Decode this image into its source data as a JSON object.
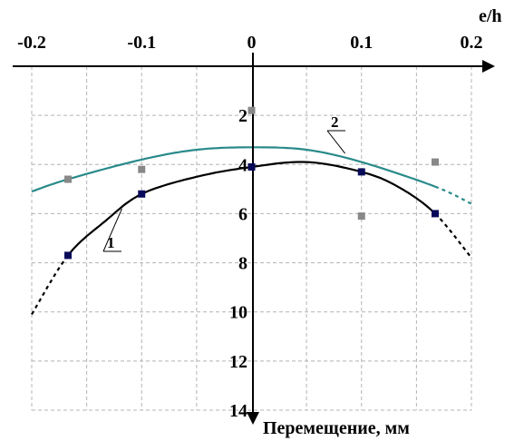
{
  "chart_data": {
    "type": "line",
    "title": "",
    "xlabel": "e/h",
    "ylabel": "Перемещение, мм",
    "x_axis_position": "top",
    "y_axis_direction": "down",
    "grid": true,
    "xlim": [
      -0.2,
      0.2
    ],
    "ylim": [
      0,
      14
    ],
    "x_ticks": [
      -0.2,
      -0.1,
      0,
      0.1,
      0.2
    ],
    "x_tick_labels": [
      "-0.2",
      "-0.1",
      "0",
      "0.1",
      "0.2"
    ],
    "y_ticks": [
      2,
      4,
      6,
      8,
      10,
      12,
      14
    ],
    "y_tick_labels": [
      "2",
      "4",
      "6",
      "8",
      "10",
      "12",
      "14"
    ],
    "series": [
      {
        "name": "1",
        "color": "#000000",
        "marker_color": "#0a0a5a",
        "points": [
          {
            "x": -0.167,
            "y": 7.7
          },
          {
            "x": -0.1,
            "y": 5.2
          },
          {
            "x": 0,
            "y": 4.1
          },
          {
            "x": 0.1,
            "y": 4.3
          },
          {
            "x": 0.167,
            "y": 6.0
          }
        ],
        "curve": [
          {
            "x": -0.2,
            "y": 10.1
          },
          {
            "x": -0.167,
            "y": 7.7
          },
          {
            "x": -0.133,
            "y": 6.3
          },
          {
            "x": -0.1,
            "y": 5.2
          },
          {
            "x": -0.05,
            "y": 4.5
          },
          {
            "x": 0,
            "y": 4.1
          },
          {
            "x": 0.05,
            "y": 3.9
          },
          {
            "x": 0.1,
            "y": 4.3
          },
          {
            "x": 0.133,
            "y": 4.9
          },
          {
            "x": 0.167,
            "y": 6.0
          },
          {
            "x": 0.2,
            "y": 7.8
          }
        ],
        "extrapolated_x_ranges": [
          [
            -0.2,
            -0.167
          ],
          [
            0.167,
            0.2
          ]
        ]
      },
      {
        "name": "2",
        "color": "#2a8a8a",
        "marker_color": "#888888",
        "points": [
          {
            "x": -0.167,
            "y": 4.6
          },
          {
            "x": -0.1,
            "y": 4.2
          },
          {
            "x": 0,
            "y": 1.8
          },
          {
            "x": 0.1,
            "y": 6.1
          },
          {
            "x": 0.167,
            "y": 3.9
          }
        ],
        "curve": [
          {
            "x": -0.2,
            "y": 5.1
          },
          {
            "x": -0.167,
            "y": 4.6
          },
          {
            "x": -0.1,
            "y": 3.8
          },
          {
            "x": -0.05,
            "y": 3.4
          },
          {
            "x": 0,
            "y": 3.3
          },
          {
            "x": 0.05,
            "y": 3.4
          },
          {
            "x": 0.1,
            "y": 3.9
          },
          {
            "x": 0.167,
            "y": 4.9
          },
          {
            "x": 0.2,
            "y": 5.6
          }
        ],
        "extrapolated_x_ranges": [
          [
            0.167,
            0.2
          ]
        ]
      }
    ]
  }
}
